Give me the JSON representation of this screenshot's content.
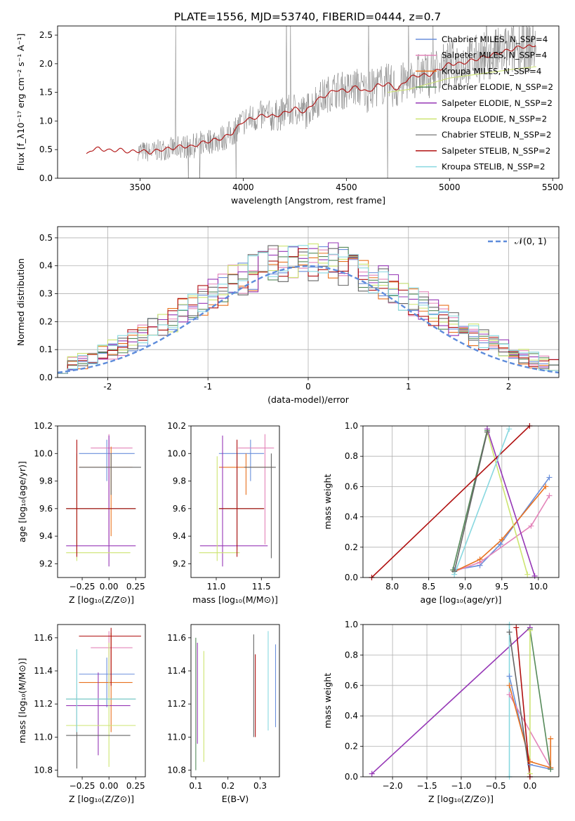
{
  "figure_title": "PLATE=1556, MJD=53740, FIBERID=0444, z=0.7",
  "chart_data": [
    {
      "id": "spectrum",
      "type": "line",
      "xlabel": "wavelength [Angstrom, rest frame]",
      "ylabel": "Flux [f_λ10⁻¹⁷ erg cm⁻² s⁻¹ A⁻¹]",
      "xlim": [
        3100,
        5530
      ],
      "ylim": [
        0,
        2.66
      ],
      "xticks": [
        3500,
        4000,
        4500,
        5000,
        5500
      ],
      "yticks": [
        0.0,
        0.5,
        1.0,
        1.5,
        2.0,
        2.5
      ],
      "legend_position": "right",
      "legend": [
        "Chabrier MILES, N_SSP=4",
        "Salpeter MILES, N_SSP=4",
        "Kroupa MILES, N_SSP=4",
        "Chabrier ELODIE, N_SSP=2",
        "Salpeter ELODIE, N_SSP=2",
        "Kroupa ELODIE, N_SSP=2",
        "Chabrier STELIB, N_SSP=2",
        "Salpeter STELIB, N_SSP=2",
        "Kroupa STELIB, N_SSP=2"
      ],
      "model_curve": {
        "x": [
          3240,
          3260,
          3300,
          3350,
          3400,
          3450,
          3500,
          3550,
          3600,
          3650,
          3700,
          3750,
          3800,
          3850,
          3900,
          3950,
          4000,
          4050,
          4100,
          4150,
          4200,
          4250,
          4300,
          4350,
          4400,
          4450,
          4500,
          4550,
          4600,
          4650,
          4700,
          4750,
          4800,
          4850,
          4900,
          4950,
          5000,
          5050,
          5100,
          5150,
          5200,
          5250,
          5300,
          5350,
          5400,
          5420
        ],
        "y": [
          0.4,
          0.5,
          0.52,
          0.48,
          0.5,
          0.46,
          0.48,
          0.45,
          0.5,
          0.52,
          0.56,
          0.55,
          0.62,
          0.66,
          0.7,
          0.8,
          1.0,
          1.05,
          1.1,
          1.08,
          1.14,
          1.22,
          1.15,
          1.35,
          1.45,
          1.55,
          1.52,
          1.6,
          1.5,
          1.62,
          1.65,
          1.55,
          1.75,
          1.8,
          1.8,
          1.9,
          2.0,
          2.0,
          2.05,
          2.1,
          2.15,
          2.2,
          2.25,
          2.3,
          2.3,
          2.35
        ]
      },
      "elodie_curve": {
        "x": [
          4700,
          4800,
          4900,
          5000,
          5100,
          5200,
          5300,
          5420
        ],
        "y": [
          1.5,
          1.55,
          1.65,
          1.75,
          1.8,
          1.85,
          1.9,
          1.95
        ]
      },
      "data_curve": {
        "x_start": 3490,
        "x_end": 5420,
        "amplitude": 0.35
      }
    },
    {
      "id": "residuals",
      "type": "histogram",
      "xlabel": "(data-model)/error",
      "ylabel": "Normed distribution",
      "xlim": [
        -2.5,
        2.5
      ],
      "ylim": [
        0,
        0.54
      ],
      "xticks": [
        -2,
        -1,
        0,
        1,
        2
      ],
      "yticks": [
        0.0,
        0.1,
        0.2,
        0.3,
        0.4,
        0.5
      ],
      "legend": [
        "𝒩(0, 1)"
      ],
      "legend_position": "top-right",
      "bin_width": 0.1
    },
    {
      "id": "age-vs-Z",
      "type": "errorbar",
      "xlabel": "Z [log₁₀(Z/Z⊙)]",
      "ylabel": "age  [log₁₀(age/yr)]",
      "xlim": [
        -0.48,
        0.34
      ],
      "ylim": [
        9.1,
        10.2
      ],
      "xticks": [
        -0.25,
        0.0,
        0.25
      ],
      "xticklabels": [
        "−0.25",
        "0.00",
        "0.25"
      ],
      "yticks": [
        9.2,
        9.4,
        9.6,
        9.8,
        10.0,
        10.2
      ],
      "points": [
        {
          "x": -0.02,
          "xerr": [
            0.26,
            0.26
          ],
          "y": 10.0,
          "yerr": [
            0.2,
            0.1
          ]
        },
        {
          "x": 0.0,
          "xerr": [
            0.17,
            0.22
          ],
          "y": 10.04,
          "yerr": [
            0.7,
            0.1
          ]
        },
        {
          "x": 0.02,
          "xerr": [
            0.3,
            0.2
          ],
          "y": 9.9,
          "yerr": [
            0.5,
            0.15
          ]
        },
        {
          "x": -0.3,
          "xerr": [
            0.1,
            0.55
          ],
          "y": 9.6,
          "yerr": [
            0.3,
            0.4
          ]
        },
        {
          "x": 0.0,
          "xerr": [
            0.4,
            0.25
          ],
          "y": 9.33,
          "yerr": [
            0.15,
            0.8
          ]
        },
        {
          "x": -0.3,
          "xerr": [
            0.1,
            0.5
          ],
          "y": 9.28,
          "yerr": [
            0.06,
            0.7
          ]
        },
        {
          "x": 0.02,
          "xerr": [
            0.3,
            0.28
          ],
          "y": 9.9,
          "yerr": [
            0.2,
            0.1
          ]
        },
        {
          "x": -0.3,
          "xerr": [
            0.1,
            0.55
          ],
          "y": 9.6,
          "yerr": [
            0.35,
            0.5
          ]
        }
      ]
    },
    {
      "id": "age-vs-mass",
      "type": "errorbar",
      "xlabel": "mass [log₁₀(M/M⊙)]",
      "ylabel": "",
      "xlim": [
        10.72,
        11.7
      ],
      "ylim": [
        9.1,
        10.2
      ],
      "xticks": [
        11.0,
        11.5
      ],
      "yticks": [
        9.2,
        9.4,
        9.6,
        9.8,
        10.0,
        10.2
      ],
      "points": [
        {
          "x": 11.38,
          "xerr": [
            0.35,
            0.15
          ],
          "y": 10.0,
          "yerr": [
            0.2,
            0.1
          ]
        },
        {
          "x": 11.54,
          "xerr": [
            0.3,
            0.1
          ],
          "y": 10.04,
          "yerr": [
            0.7,
            0.1
          ]
        },
        {
          "x": 11.33,
          "xerr": [
            0.3,
            0.3
          ],
          "y": 9.9,
          "yerr": [
            0.2,
            0.1
          ]
        },
        {
          "x": 11.23,
          "xerr": [
            0.2,
            0.3
          ],
          "y": 9.6,
          "yerr": [
            0.3,
            0.4
          ]
        },
        {
          "x": 11.07,
          "xerr": [
            0.25,
            0.5
          ],
          "y": 9.33,
          "yerr": [
            0.15,
            0.8
          ]
        },
        {
          "x": 11.01,
          "xerr": [
            0.2,
            0.25
          ],
          "y": 9.28,
          "yerr": [
            0.06,
            0.7
          ]
        },
        {
          "x": 11.61,
          "xerr": [
            0.3,
            0.05
          ],
          "y": 9.9,
          "yerr": [
            0.66,
            0.1
          ]
        },
        {
          "x": 11.23,
          "xerr": [
            0.2,
            0.3
          ],
          "y": 9.6,
          "yerr": [
            0.35,
            0.5
          ]
        }
      ]
    },
    {
      "id": "massweight-vs-age",
      "type": "line",
      "xlabel": "age  [log₁₀(age/yr)]",
      "ylabel": "mass weight",
      "xlim": [
        7.6,
        10.28
      ],
      "ylim": [
        0,
        1.0
      ],
      "xticks": [
        8.0,
        8.5,
        9.0,
        9.5,
        10.0
      ],
      "yticks": [
        0.0,
        0.2,
        0.4,
        0.6,
        0.8,
        1.0
      ],
      "series": [
        {
          "x": [
            8.85,
            9.2,
            9.48,
            10.15
          ],
          "y": [
            0.05,
            0.08,
            0.22,
            0.66
          ]
        },
        {
          "x": [
            8.85,
            9.2,
            9.9,
            10.15
          ],
          "y": [
            0.04,
            0.1,
            0.34,
            0.54
          ]
        },
        {
          "x": [
            8.85,
            9.2,
            9.5,
            10.1
          ],
          "y": [
            0.04,
            0.12,
            0.25,
            0.6
          ]
        },
        {
          "x": [
            8.83,
            9.3
          ],
          "y": [
            0.05,
            0.97
          ]
        },
        {
          "x": [
            9.3,
            9.95
          ],
          "y": [
            0.98,
            0.01
          ]
        },
        {
          "x": [
            9.3,
            9.85
          ],
          "y": [
            0.96,
            0.02
          ]
        },
        {
          "x": [
            8.85,
            9.3
          ],
          "y": [
            0.04,
            0.96
          ]
        },
        {
          "x": [
            7.72,
            9.88
          ],
          "y": [
            0.0,
            1.0
          ]
        },
        {
          "x": [
            8.85,
            9.6
          ],
          "y": [
            0.02,
            0.98
          ]
        }
      ]
    },
    {
      "id": "mass-vs-Z",
      "type": "errorbar",
      "xlabel": "Z [log₁₀(Z/Z⊙)]",
      "ylabel": "mass [log₁₀(M/M⊙)]",
      "xlim": [
        -0.48,
        0.34
      ],
      "ylim": [
        10.76,
        11.68
      ],
      "xticks": [
        -0.25,
        0.0,
        0.25
      ],
      "xticklabels": [
        "−0.25",
        "0.00",
        "0.25"
      ],
      "yticks": [
        10.8,
        11.0,
        11.2,
        11.4,
        11.6
      ],
      "points": [
        {
          "x": -0.02,
          "xerr": [
            0.26,
            0.26
          ],
          "y": 11.38,
          "yerr": [
            0.2,
            0.1
          ]
        },
        {
          "x": 0.0,
          "xerr": [
            0.17,
            0.22
          ],
          "y": 11.54,
          "yerr": [
            0.3,
            0.1
          ]
        },
        {
          "x": 0.02,
          "xerr": [
            0.3,
            0.2
          ],
          "y": 11.33,
          "yerr": [
            0.3,
            0.3
          ]
        },
        {
          "x": -0.3,
          "xerr": [
            0.1,
            0.55
          ],
          "y": 11.23,
          "yerr": [
            0.2,
            0.3
          ]
        },
        {
          "x": -0.1,
          "xerr": [
            0.3,
            0.3
          ],
          "y": 11.19,
          "yerr": [
            0.3,
            0.2
          ]
        },
        {
          "x": 0.0,
          "xerr": [
            0.4,
            0.25
          ],
          "y": 11.07,
          "yerr": [
            0.25,
            0.5
          ]
        },
        {
          "x": -0.3,
          "xerr": [
            0.1,
            0.5
          ],
          "y": 11.01,
          "yerr": [
            0.2,
            0.25
          ]
        },
        {
          "x": 0.02,
          "xerr": [
            0.3,
            0.28
          ],
          "y": 11.61,
          "yerr": [
            0.3,
            0.05
          ]
        },
        {
          "x": -0.3,
          "xerr": [
            0.1,
            0.55
          ],
          "y": 11.23,
          "yerr": [
            0.2,
            0.3
          ]
        }
      ]
    },
    {
      "id": "mass-vs-ebv",
      "type": "errorbar",
      "xlabel": "E(B-V)",
      "ylabel": "",
      "xlim": [
        0.085,
        0.36
      ],
      "ylim": [
        10.76,
        11.68
      ],
      "xticks": [
        0.1,
        0.2,
        0.3
      ],
      "yticks": [
        10.8,
        11.0,
        11.2,
        11.4,
        11.6
      ],
      "points": [
        {
          "x": 0.1,
          "xerr": [
            0,
            0
          ],
          "y": 11.2,
          "yerr": [
            0.4,
            0.4
          ]
        },
        {
          "x": 0.105,
          "xerr": [
            0,
            0
          ],
          "y": 11.22,
          "yerr": [
            0.26,
            0.35
          ]
        },
        {
          "x": 0.125,
          "xerr": [
            0,
            0
          ],
          "y": 11.18,
          "yerr": [
            0.33,
            0.34
          ]
        },
        {
          "x": 0.28,
          "xerr": [
            0,
            0
          ],
          "y": 11.3,
          "yerr": [
            0.3,
            0.32
          ]
        },
        {
          "x": 0.285,
          "xerr": [
            0,
            0
          ],
          "y": 11.25,
          "yerr": [
            0.25,
            0.25
          ]
        },
        {
          "x": 0.325,
          "xerr": [
            0,
            0
          ],
          "y": 11.34,
          "yerr": [
            0.3,
            0.3
          ]
        },
        {
          "x": 0.348,
          "xerr": [
            0,
            0
          ],
          "y": 11.31,
          "yerr": [
            0.25,
            0.25
          ]
        }
      ]
    },
    {
      "id": "massweight-vs-Z",
      "type": "line",
      "xlabel": "Z [log₁₀(Z/Z⊙)]",
      "ylabel": "mass weight",
      "xlim": [
        -2.43,
        0.42
      ],
      "ylim": [
        0,
        1.0
      ],
      "xticks": [
        -2.0,
        -1.5,
        -1.0,
        -0.5,
        0.0
      ],
      "xticklabels": [
        "−2.0",
        "−1.5",
        "−1.0",
        "−0.5",
        "0.0"
      ],
      "yticks": [
        0.0,
        0.2,
        0.4,
        0.6,
        0.8,
        1.0
      ],
      "series": [
        {
          "x": [
            -0.3,
            0.0,
            0.3
          ],
          "y": [
            0.66,
            0.08,
            0.05
          ]
        },
        {
          "x": [
            -0.3,
            0.3
          ],
          "y": [
            0.54,
            0.06
          ]
        },
        {
          "x": [
            -0.3,
            0.0,
            0.3,
            0.3
          ],
          "y": [
            0.6,
            0.1,
            0.06,
            0.25
          ]
        },
        {
          "x": [
            0.0,
            0.3
          ],
          "y": [
            0.97,
            0.05
          ]
        },
        {
          "x": [
            -2.3,
            0.0
          ],
          "y": [
            0.02,
            0.98
          ]
        },
        {
          "x": [
            0.0,
            0.0
          ],
          "y": [
            0.96,
            0.02
          ]
        },
        {
          "x": [
            -0.3,
            0.0
          ],
          "y": [
            0.95,
            0.0
          ]
        },
        {
          "x": [
            -0.2,
            0.0
          ],
          "y": [
            0.98,
            0.0
          ]
        },
        {
          "x": [
            -0.3,
            -0.3
          ],
          "y": [
            1.0,
            0.0
          ]
        }
      ]
    }
  ],
  "colors": [
    "#6a8fdb",
    "#e384b9",
    "#e8711f",
    "#568a5a",
    "#9637b6",
    "#cde571",
    "#666666",
    "#b01010",
    "#88d8e0"
  ],
  "line_widths": [
    1.2,
    1.2,
    1.2,
    1.2,
    1.2,
    1.2,
    0.8,
    1.2,
    1.2
  ]
}
